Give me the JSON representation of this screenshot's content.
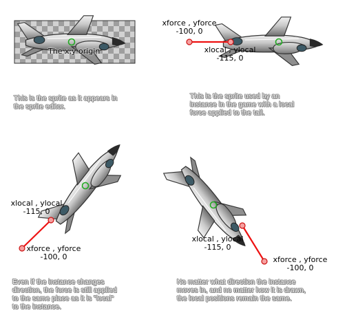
{
  "panel1": {
    "origin_label": "The x,y origin",
    "caption": [
      "This is the sprite as it appears in",
      "the sprite editor."
    ]
  },
  "panel2": {
    "force_label": "xforce , yforce",
    "force_value": "-100, 0",
    "local_label": "xlocal , ylocal",
    "local_value": "-115, 0",
    "caption": [
      "This is the sprite used by an",
      "instance in the game with a local",
      "force applied to the tail."
    ]
  },
  "panel3": {
    "local_label": "xlocal , ylocal",
    "local_value": "-115, 0",
    "force_label": "xforce , yforce",
    "force_value": "-100, 0",
    "caption": [
      "Even if the instance changes",
      "direction, the force is still applied",
      "to the same place as it is \"local\"",
      "to the instance."
    ]
  },
  "panel4": {
    "local_label": "xlocal , ylocal",
    "local_value": "-115, 0",
    "force_label": "xforce , yforce",
    "force_value": "-100, 0",
    "caption": [
      "No matter what direction the instance",
      "moves in, and no matter how it is drawn,",
      "the local positions remain the same."
    ]
  },
  "colors": {
    "force_line": "#ee1111",
    "origin_marker": "#22aa22"
  }
}
